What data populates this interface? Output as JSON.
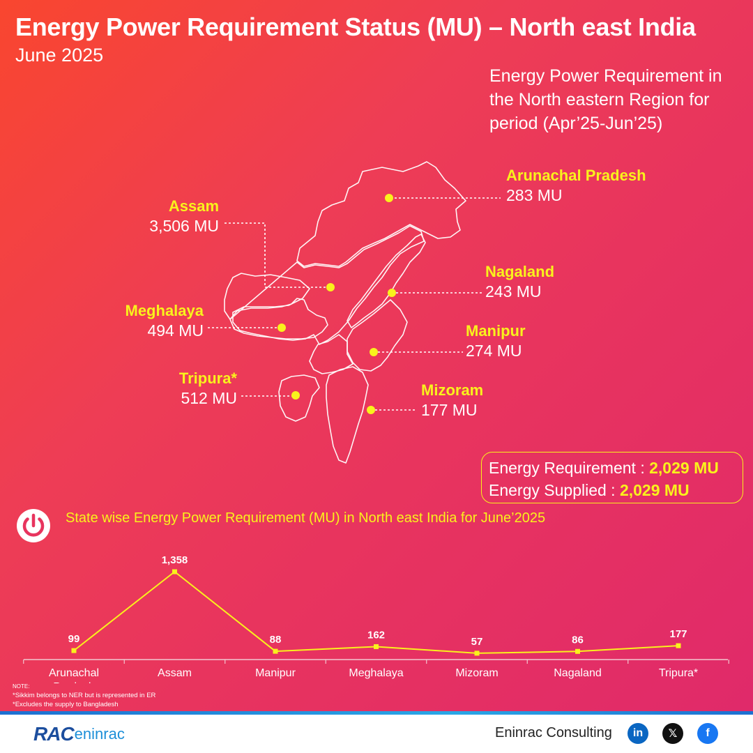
{
  "header": {
    "title": "Energy Power Requirement Status (MU) – North east India",
    "subtitle": "June 2025",
    "period_text": "Energy Power Requirement in the North eastern Region for period (Apr’25-Jun’25)"
  },
  "map_labels": [
    {
      "name": "Arunachal Pradesh",
      "value": "283 MU"
    },
    {
      "name": "Assam",
      "value": "3,506 MU"
    },
    {
      "name": "Nagaland",
      "value": "243 MU"
    },
    {
      "name": "Meghalaya",
      "value": "494 MU"
    },
    {
      "name": "Manipur",
      "value": "274 MU"
    },
    {
      "name": "Tripura*",
      "value": "512 MU"
    },
    {
      "name": "Mizoram",
      "value": "177 MU"
    }
  ],
  "summary": {
    "requirement_label": "Energy Requirement : ",
    "requirement_value": "2,029 MU",
    "supplied_label": "Energy Supplied : ",
    "supplied_value": "2,029 MU"
  },
  "chart_title": "State wise Energy Power Requirement (MU) in North east India for June’2025",
  "chart_data": {
    "type": "line",
    "categories": [
      "Arunachal Pradesh",
      "Assam",
      "Manipur",
      "Meghalaya",
      "Mizoram",
      "Nagaland",
      "Tripura*"
    ],
    "series": [
      {
        "values": [
          99,
          1358,
          88,
          162,
          57,
          86,
          177
        ]
      }
    ],
    "data_labels": [
      "99",
      "1,358",
      "88",
      "162",
      "57",
      "86",
      "177"
    ],
    "title": "State wise Energy Power Requirement (MU) in North east India for June’2025",
    "xlabel": "",
    "ylabel": "",
    "ylim": [
      0,
      1400
    ],
    "grid": false,
    "line_color": "#f9f21c"
  },
  "notes": {
    "heading": "NOTE:",
    "lines": [
      "*Sikkim belongs to NER but is represented in ER",
      "*Excludes the supply to Bangladesh"
    ]
  },
  "footer": {
    "logo_rac": "RAC",
    "logo_eninrac": "eninrac",
    "company": "Eninrac Consulting",
    "social": [
      {
        "name": "linkedin",
        "glyph": "in",
        "color": "#0a66c2"
      },
      {
        "name": "x",
        "glyph": "𝕏",
        "color": "#111111"
      },
      {
        "name": "facebook",
        "glyph": "f",
        "color": "#1877f2"
      }
    ]
  },
  "colors": {
    "accent_yellow": "#f9f21c",
    "white": "#ffffff"
  }
}
